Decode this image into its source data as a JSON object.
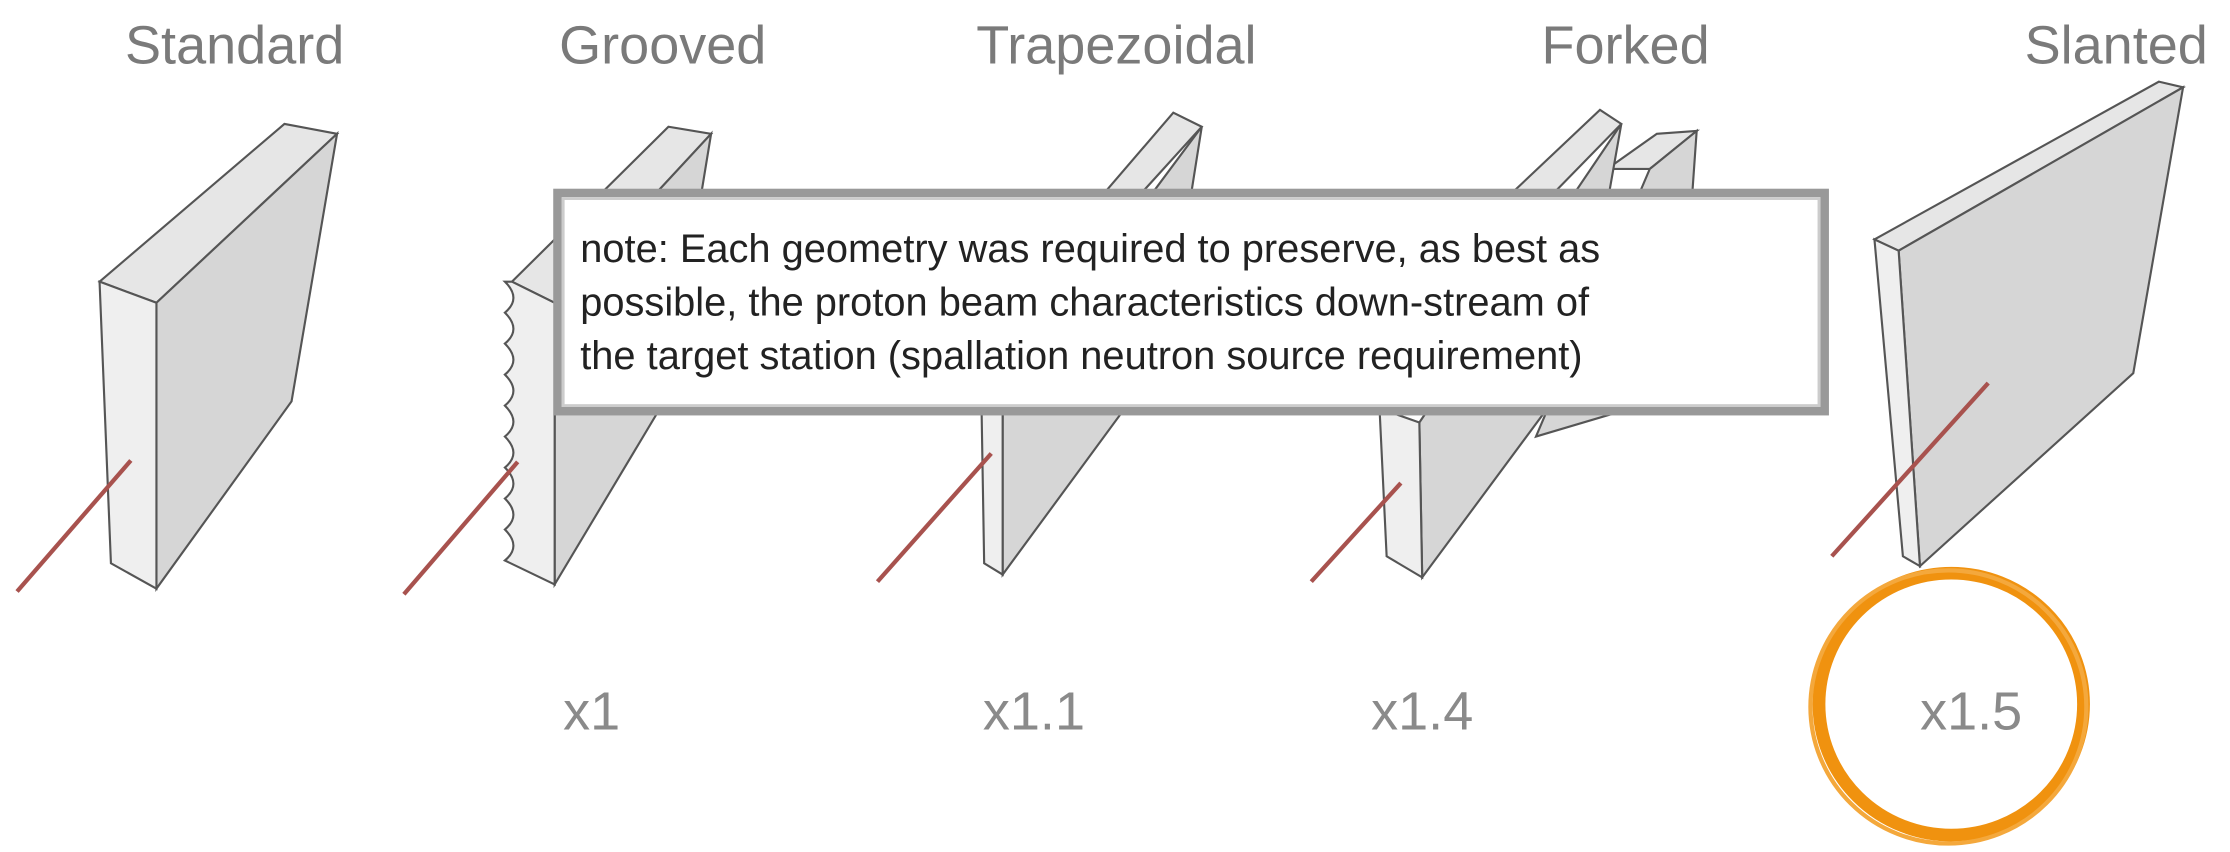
{
  "geometries": [
    {
      "name": "Standard"
    },
    {
      "name": "Grooved",
      "factor": "x1"
    },
    {
      "name": "Trapezoidal",
      "factor": "x1.1"
    },
    {
      "name": "Forked",
      "factor": "x1.4"
    },
    {
      "name": "Slanted",
      "factor": "x1.5"
    }
  ],
  "note": {
    "lines": [
      "note: Each geometry was required to preserve, as best as",
      "possible, the proton beam characteristics down-stream of",
      "the target station (spallation neutron source requirement)"
    ]
  }
}
